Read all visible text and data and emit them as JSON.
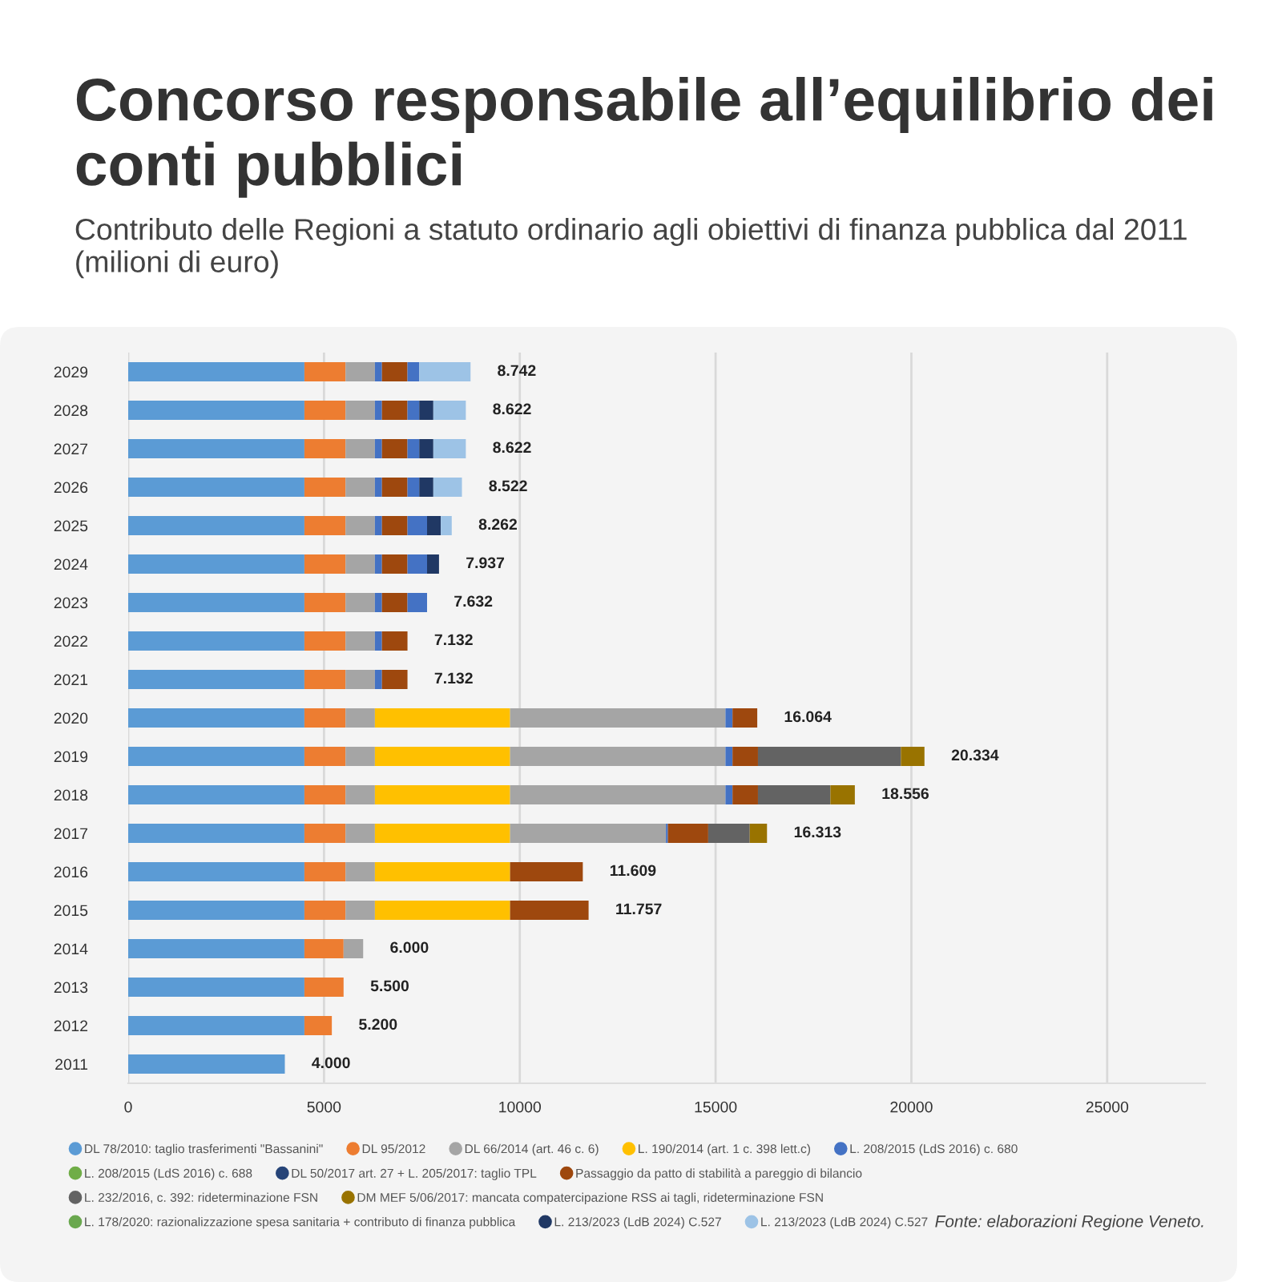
{
  "chart_data": {
    "type": "bar",
    "orientation": "horizontal",
    "stacked": true,
    "title": "Concorso responsabile all’equilibrio dei conti pubblici",
    "subtitle": "Contributo delle Regioni a statuto ordinario agli obiettivi di finanza pubblica dal 2011 (milioni di euro)",
    "categories": [
      "2029",
      "2028",
      "2027",
      "2026",
      "2025",
      "2024",
      "2023",
      "2022",
      "2021",
      "2020",
      "2019",
      "2018",
      "2017",
      "2016",
      "2015",
      "2014",
      "2013",
      "2012",
      "2011"
    ],
    "series": [
      {
        "name": "DL 78/2010: taglio trasferimenti \"Bassanini\"",
        "color": "#5b9bd5",
        "values": [
          4500,
          4500,
          4500,
          4500,
          4500,
          4500,
          4500,
          4500,
          4500,
          4500,
          4500,
          4500,
          4500,
          4500,
          4500,
          4500,
          4500,
          4500,
          4000
        ]
      },
      {
        "name": "DL 95/2012",
        "color": "#ed7d31",
        "values": [
          1050,
          1050,
          1050,
          1050,
          1050,
          1050,
          1050,
          1050,
          1050,
          1050,
          1050,
          1050,
          1050,
          1050,
          1050,
          1000,
          1000,
          700,
          null
        ]
      },
      {
        "name": "DL 66/2014 (art. 46 c. 6)",
        "color": "#a5a5a5",
        "values": [
          750,
          750,
          750,
          750,
          750,
          750,
          750,
          750,
          750,
          750,
          750,
          750,
          750,
          750,
          750,
          500,
          null,
          null,
          null
        ]
      },
      {
        "name": "L. 190/2014 (art. 1 c. 398 lett.c)",
        "color": "#ffc000",
        "values": [
          null,
          null,
          null,
          null,
          null,
          null,
          null,
          null,
          null,
          3452,
          3452,
          3452,
          3452,
          3452,
          3452,
          null,
          null,
          null,
          null
        ]
      },
      {
        "color": "#a5a5a5",
        "values": [
          null,
          null,
          null,
          null,
          null,
          null,
          null,
          null,
          null,
          5500,
          5500,
          5500,
          3980,
          null,
          null,
          null,
          null,
          null,
          null
        ]
      },
      {
        "name": "L. 208/2015 (LdS 2016) c. 680",
        "color": "#4472c4",
        "values": [
          180,
          180,
          180,
          180,
          180,
          180,
          180,
          180,
          180,
          180,
          180,
          180,
          50,
          null,
          null,
          null,
          null,
          null,
          null
        ]
      },
      {
        "name": "L. 208/2015 (LdS 2016) c. 688",
        "color": "#70ad47",
        "values": [
          null,
          null,
          null,
          null,
          null,
          null,
          null,
          null,
          null,
          null,
          null,
          null,
          null,
          null,
          null,
          null,
          null,
          null,
          null
        ]
      },
      {
        "name": "DL 50/2017 art. 27 + L. 205/2017: taglio TPL",
        "color": "#264478",
        "values": [
          null,
          null,
          null,
          null,
          null,
          null,
          null,
          null,
          null,
          null,
          null,
          null,
          null,
          null,
          null,
          null,
          null,
          null,
          null
        ]
      },
      {
        "name": "Passaggio da patto di stabilità a pareggio di bilancio",
        "color": "#9e480e",
        "values": [
          652,
          652,
          652,
          652,
          652,
          652,
          652,
          652,
          652,
          632,
          650,
          650,
          1030,
          1857,
          2005,
          null,
          null,
          null,
          null
        ]
      },
      {
        "name": "L. 232/2016, c. 392: rideterminazione FSN",
        "color": "#636363",
        "values": [
          null,
          null,
          null,
          null,
          null,
          null,
          null,
          null,
          null,
          null,
          3650,
          1850,
          1060,
          null,
          null,
          null,
          null,
          null,
          null
        ]
      },
      {
        "name": "DM MEF 5/06/2017: mancata compatercipazione RSS ai tagli, rideterminazione FSN",
        "color": "#997300",
        "values": [
          null,
          null,
          null,
          null,
          null,
          null,
          null,
          null,
          null,
          null,
          602,
          624,
          441,
          null,
          null,
          null,
          null,
          null,
          null
        ]
      },
      {
        "name": "L. 178/2020: razionalizzazione spesa sanitaria + contributo di finanza pubblica",
        "color": "#6aa84f",
        "values": [
          null,
          null,
          null,
          null,
          null,
          null,
          null,
          null,
          null,
          null,
          null,
          null,
          null,
          null,
          null,
          null,
          null,
          null,
          null
        ]
      },
      {
        "color": "#4472c4",
        "values": [
          300,
          300,
          300,
          300,
          500,
          500,
          500,
          null,
          null,
          null,
          null,
          null,
          null,
          null,
          null,
          null,
          null,
          null,
          null
        ]
      },
      {
        "name": "L. 213/2023 (LdB 2024) C.527",
        "color": "#203864",
        "values": [
          null,
          360,
          360,
          360,
          350,
          305,
          null,
          null,
          null,
          null,
          null,
          null,
          null,
          null,
          null,
          null,
          null,
          null,
          null
        ]
      },
      {
        "name": "L. 213/2023 (LdB 2024) C.527",
        "color": "#9dc3e6",
        "values": [
          1310,
          830,
          830,
          730,
          280,
          null,
          null,
          null,
          null,
          null,
          null,
          null,
          null,
          null,
          null,
          null,
          null,
          null,
          null
        ]
      }
    ],
    "totals": [
      "8.742",
      "8.622",
      "8.622",
      "8.522",
      "8.262",
      "7.937",
      "7.632",
      "7.132",
      "7.132",
      "16.064",
      "20.334",
      "18.556",
      "16.313",
      "11.609",
      "11.757",
      "6.000",
      "5.500",
      "5.200",
      "4.000"
    ],
    "xlim": [
      0,
      27500
    ],
    "xticks": [
      0,
      5000,
      10000,
      15000,
      20000,
      25000
    ],
    "grid": "x",
    "legend": "bottom",
    "marker": "circle",
    "annotations": [
      "Fonte: elaborazioni Regione Veneto."
    ]
  }
}
